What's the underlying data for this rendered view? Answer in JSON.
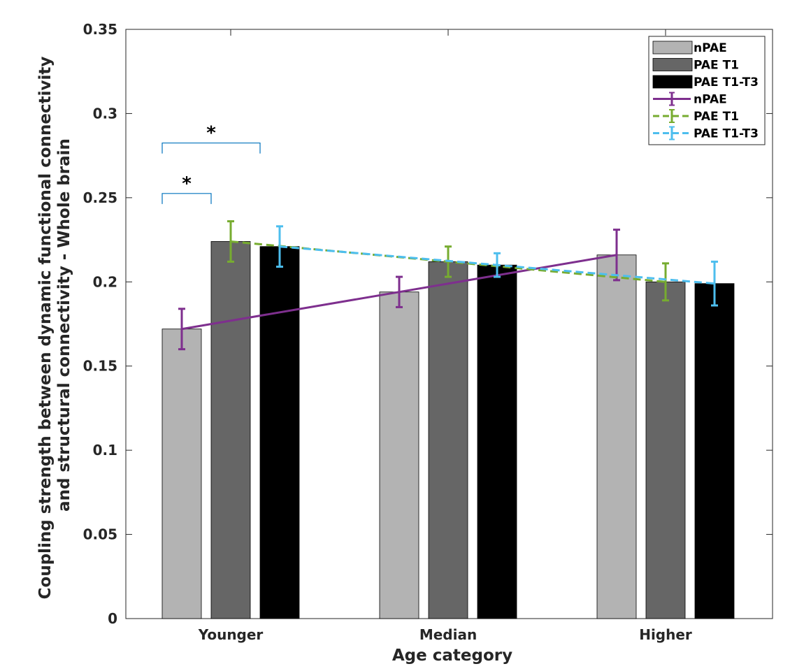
{
  "chart_data": {
    "type": "bar",
    "title": "",
    "xlabel": "Age category",
    "ylabel_lines": [
      "Coupling strength between dynamic functional connectivity",
      "and structural connectivity - Whole brain"
    ],
    "ylim": [
      0,
      0.35
    ],
    "yticks": [
      "0",
      "0.05",
      "0.1",
      "0.15",
      "0.2",
      "0.25",
      "0.3",
      "0.35"
    ],
    "categories": [
      "Younger",
      "Median",
      "Higher"
    ],
    "series": [
      {
        "name": "nPAE",
        "values": [
          0.172,
          0.194,
          0.216
        ],
        "bar_color": "#b3b3b3"
      },
      {
        "name": "PAE T1",
        "values": [
          0.224,
          0.212,
          0.2
        ],
        "bar_color": "#666666"
      },
      {
        "name": "PAE T1-T3",
        "values": [
          0.221,
          0.21,
          0.199
        ],
        "bar_color": "#000000"
      }
    ],
    "lines": [
      {
        "name": "nPAE",
        "style": "solid",
        "color": "#7e2f8e",
        "points": [
          {
            "category": "Younger",
            "series_index": 0,
            "y": 0.172,
            "err_low": 0.16,
            "err_high": 0.184
          },
          {
            "category": "Higher",
            "series_index": 0,
            "y": 0.216,
            "err_low": 0.201,
            "err_high": 0.231
          }
        ],
        "extra_errorbars": [
          {
            "category": "Median",
            "series_index": 0,
            "y": 0.194,
            "err_low": 0.185,
            "err_high": 0.203
          }
        ]
      },
      {
        "name": "PAE T1",
        "style": "dashed",
        "color": "#77ac30",
        "points": [
          {
            "category": "Younger",
            "series_index": 1,
            "y": 0.224,
            "err_low": 0.212,
            "err_high": 0.236
          },
          {
            "category": "Median",
            "series_index": 1,
            "y": 0.212,
            "err_low": 0.203,
            "err_high": 0.221
          },
          {
            "category": "Higher",
            "series_index": 1,
            "y": 0.2,
            "err_low": 0.189,
            "err_high": 0.211
          }
        ]
      },
      {
        "name": "PAE T1-T3",
        "style": "dashed",
        "color": "#4dbeee",
        "points": [
          {
            "category": "Younger",
            "series_index": 2,
            "y": 0.221,
            "err_low": 0.209,
            "err_high": 0.233
          },
          {
            "category": "Median",
            "series_index": 2,
            "y": 0.21,
            "err_low": 0.203,
            "err_high": 0.217
          },
          {
            "category": "Higher",
            "series_index": 2,
            "y": 0.199,
            "err_low": 0.186,
            "err_high": 0.212
          }
        ]
      }
    ],
    "significance": [
      {
        "category": "Younger",
        "from_series": 0,
        "to_series": 1,
        "y": 0.2525,
        "label": "*"
      },
      {
        "category": "Younger",
        "from_series": 0,
        "to_series": 2,
        "y": 0.2825,
        "label": "*"
      }
    ],
    "bracket_color": "#0072bd",
    "legend": {
      "position": "top-right",
      "entries": [
        {
          "label": "nPAE",
          "kind": "bar",
          "color": "#b3b3b3"
        },
        {
          "label": "PAE T1",
          "kind": "bar",
          "color": "#666666"
        },
        {
          "label": "PAE T1-T3",
          "kind": "bar",
          "color": "#000000"
        },
        {
          "label": "nPAE",
          "kind": "line",
          "style": "solid",
          "color": "#7e2f8e"
        },
        {
          "label": "PAE T1",
          "kind": "line",
          "style": "dashed",
          "color": "#77ac30"
        },
        {
          "label": "PAE T1-T3",
          "kind": "line",
          "style": "dashed",
          "color": "#4dbeee"
        }
      ]
    }
  }
}
